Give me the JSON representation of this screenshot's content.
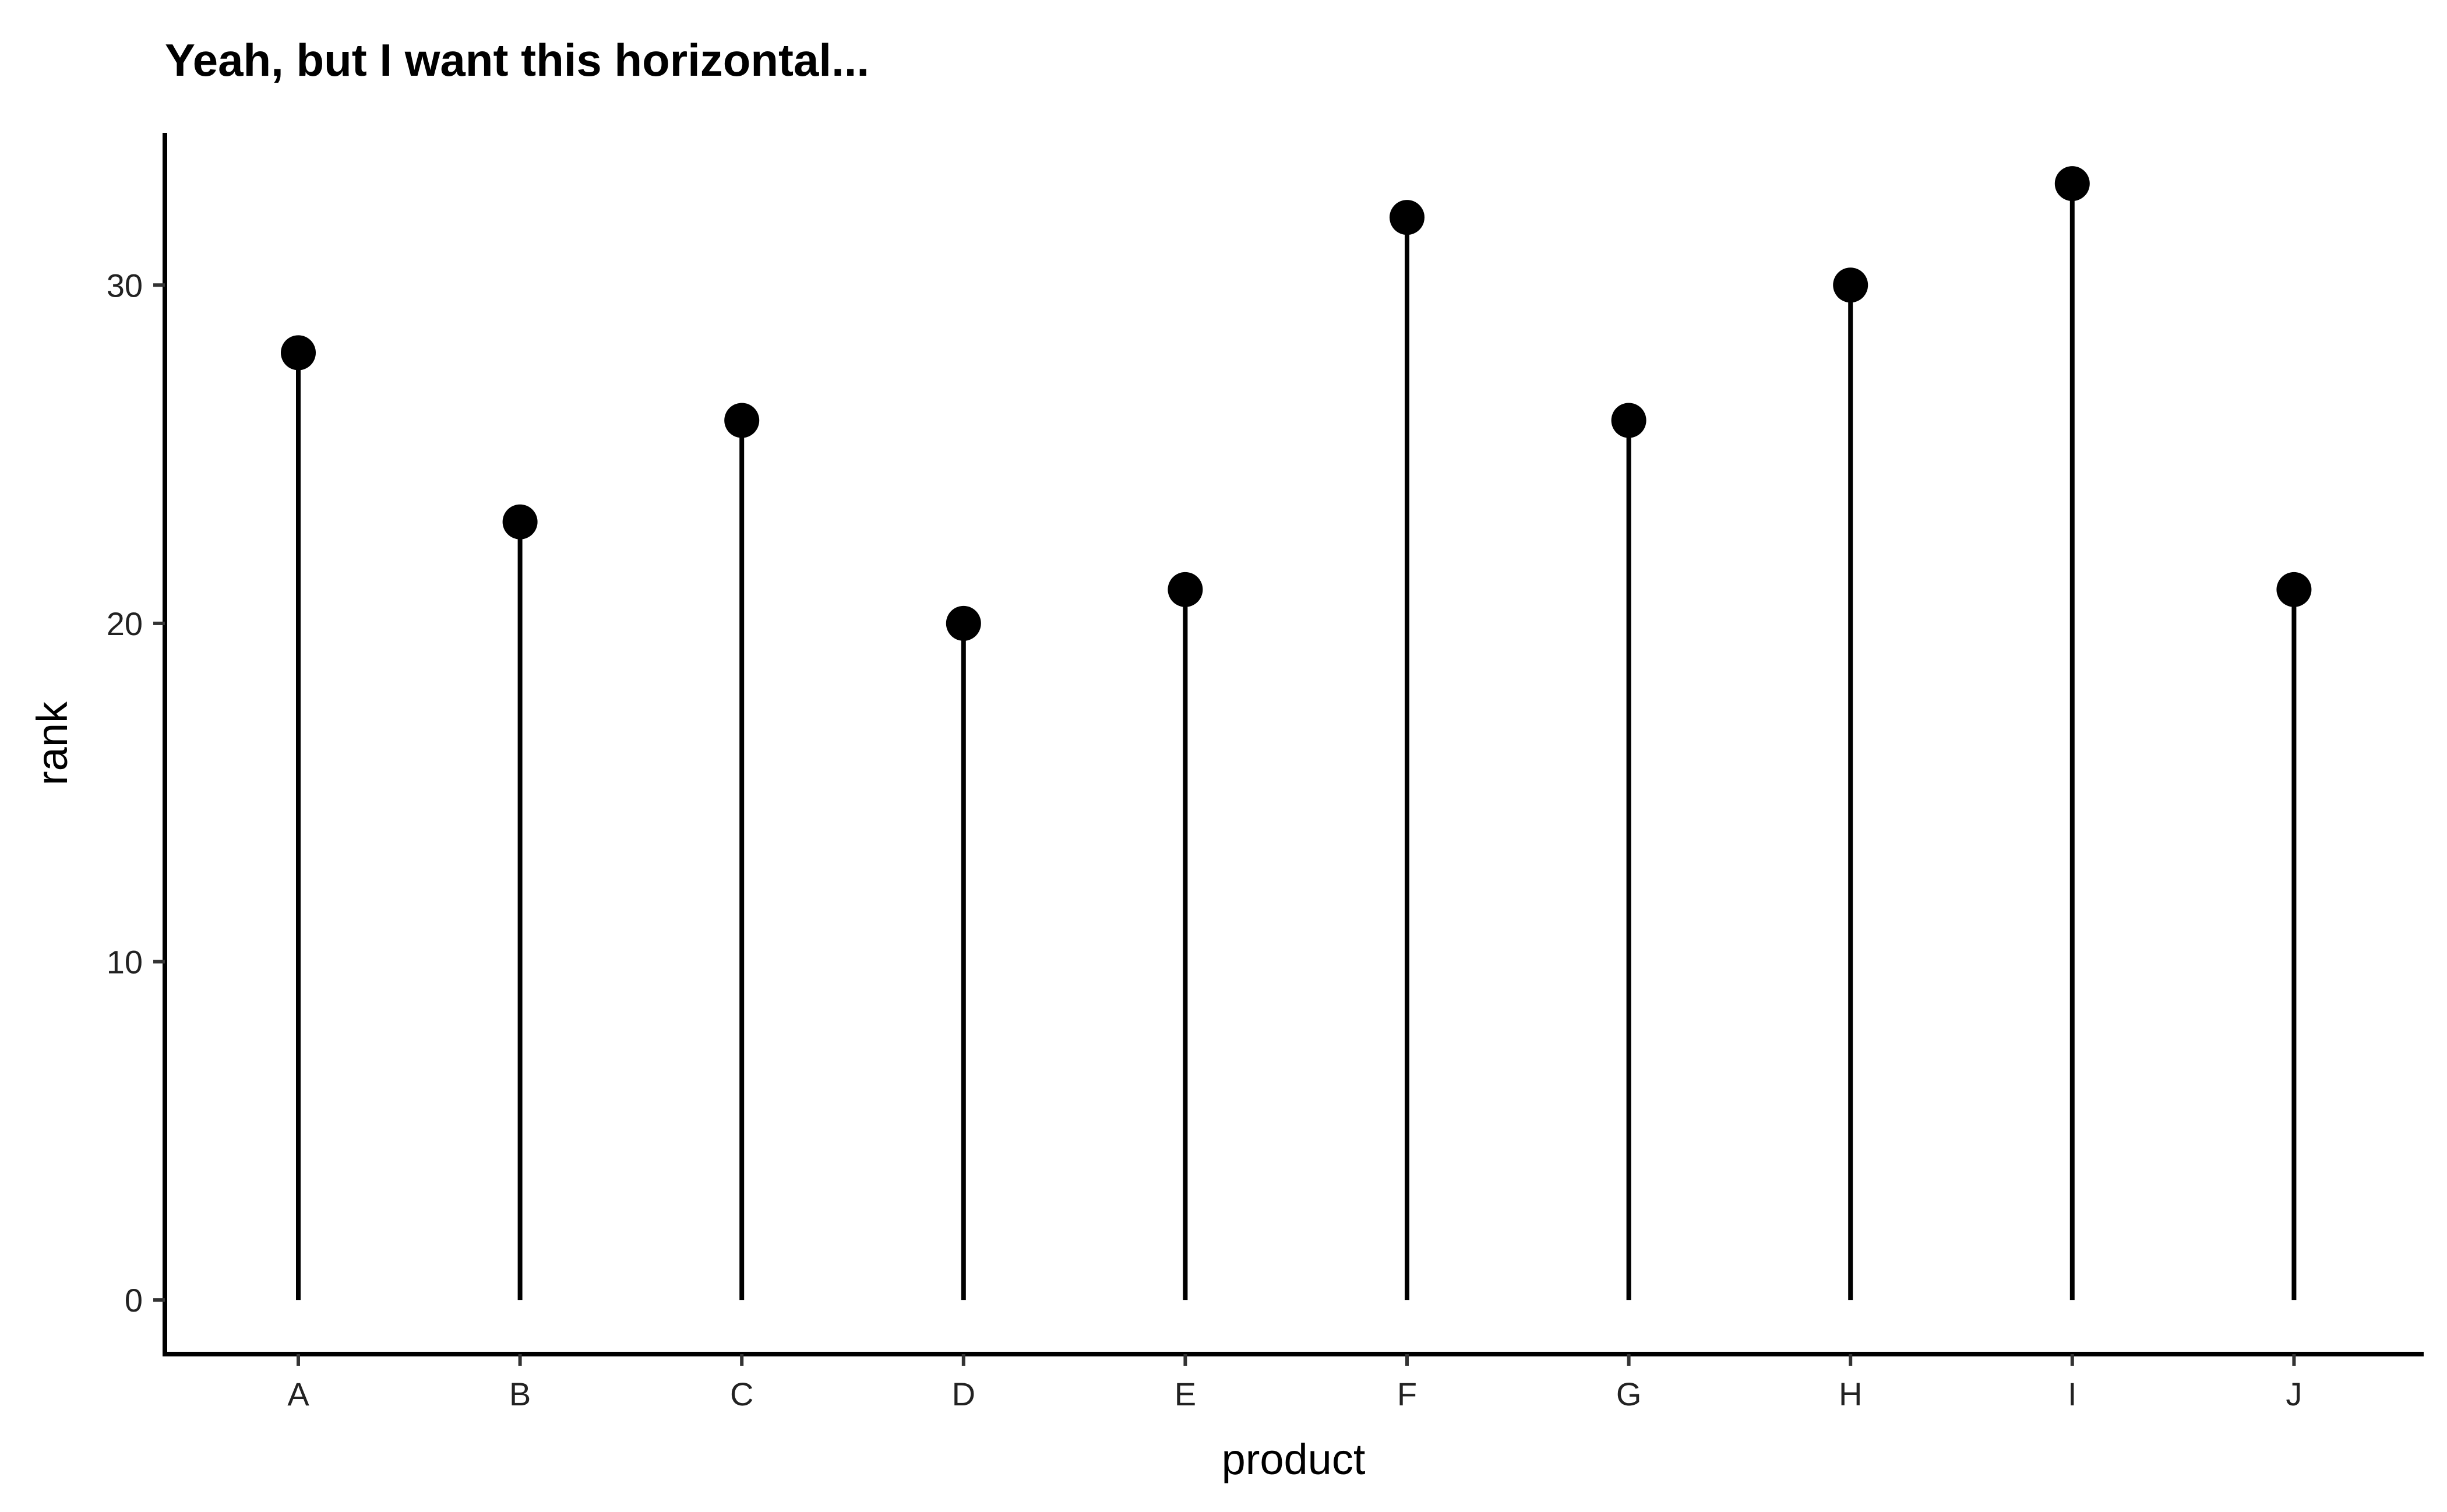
{
  "chart_data": {
    "type": "lollipop",
    "title": "Yeah, but I want this horizontal...",
    "xlabel": "product",
    "ylabel": "rank",
    "categories": [
      "A",
      "B",
      "C",
      "D",
      "E",
      "F",
      "G",
      "H",
      "I",
      "J"
    ],
    "values": [
      28,
      23,
      26,
      20,
      21,
      32,
      26,
      30,
      33,
      21
    ],
    "ylim": [
      -1.6,
      34.5
    ],
    "yticks": [
      "0",
      "10",
      "20",
      "30"
    ],
    "grid": false,
    "legend": "none",
    "colors": {
      "stem": "#000000",
      "point": "#000000",
      "axis": "#000000",
      "background": "#ffffff"
    }
  }
}
